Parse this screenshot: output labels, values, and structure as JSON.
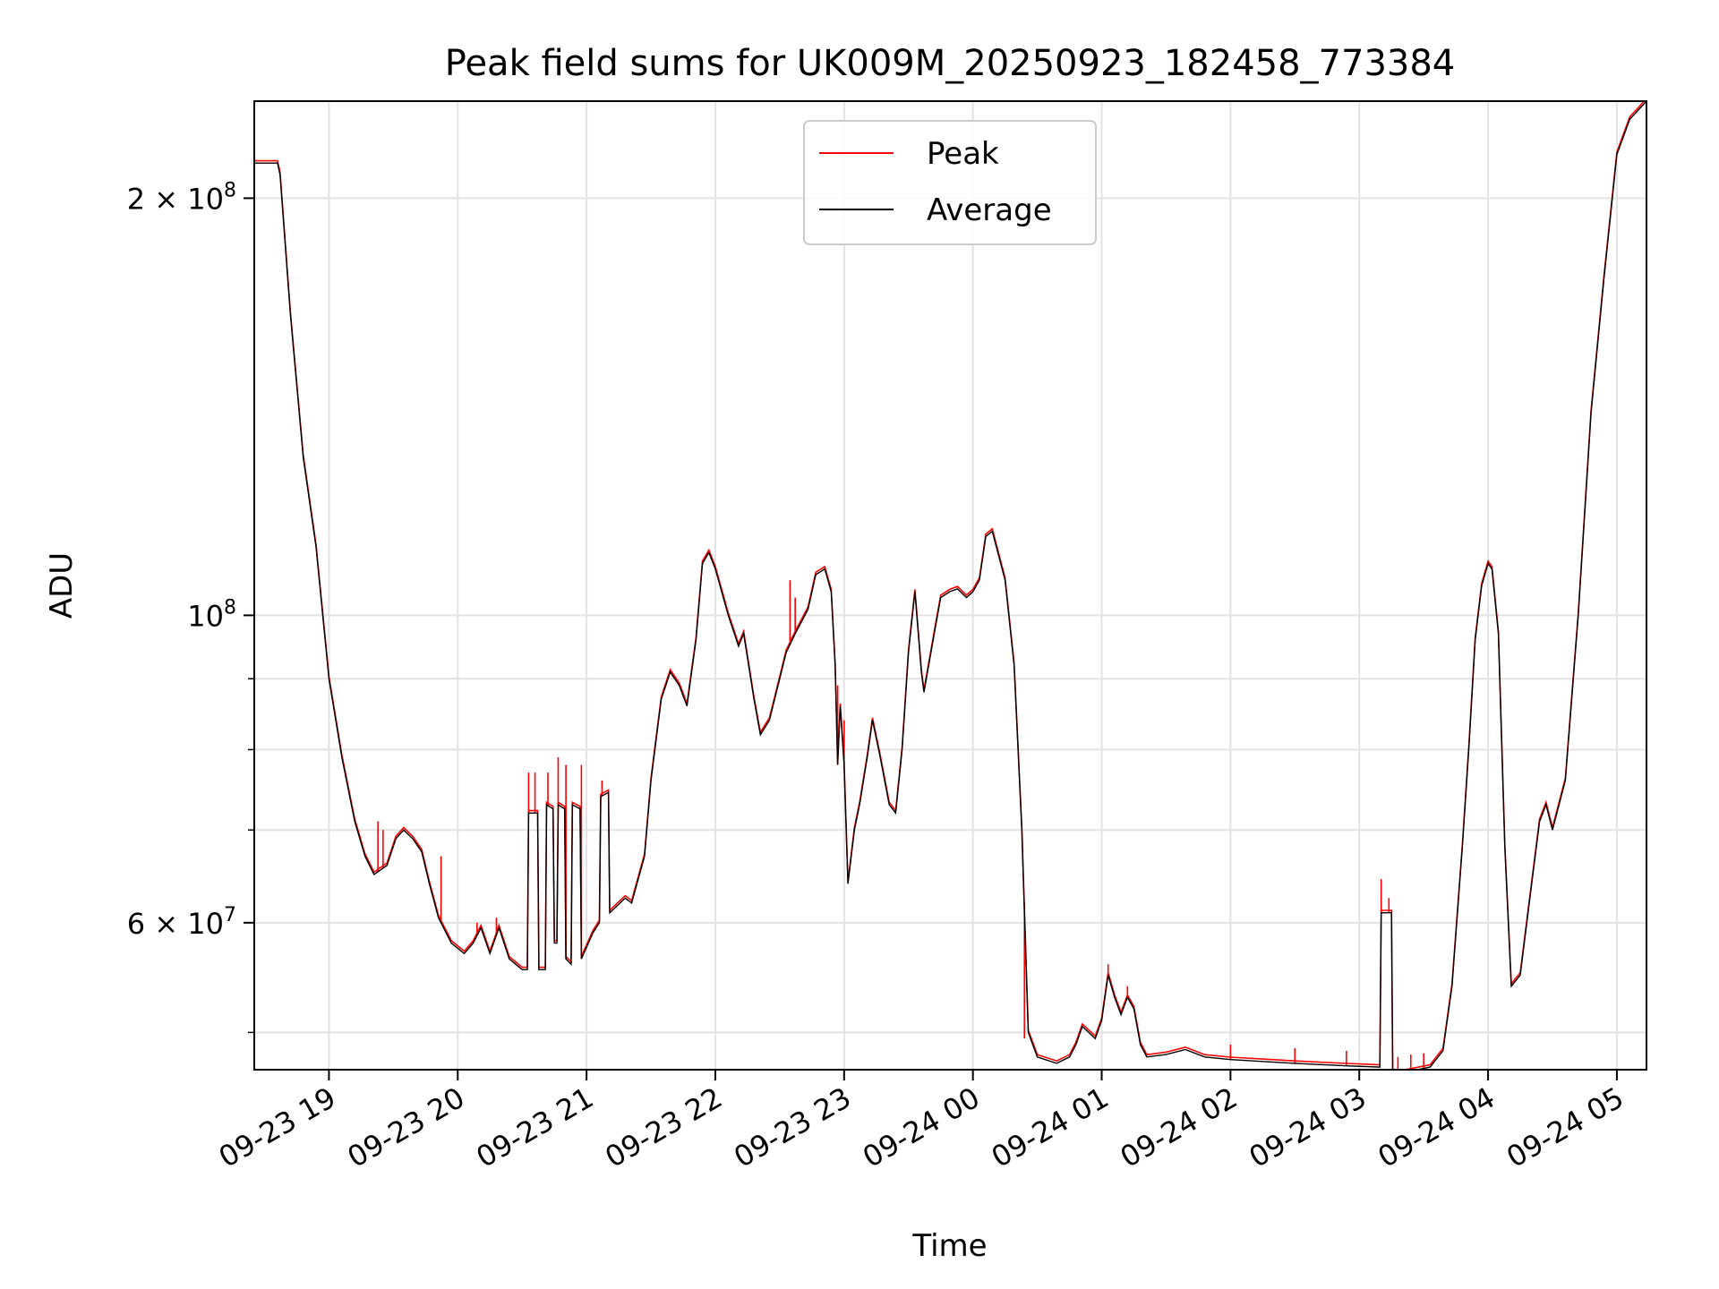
{
  "chart_data": {
    "type": "line",
    "title": "Peak field sums for UK009M_20250923_182458_773384",
    "xlabel": "Time",
    "ylabel": "ADU",
    "yscale": "log",
    "ylim": [
      47000000,
      235000000
    ],
    "xlim_hours": [
      18.42,
      29.23
    ],
    "grid": true,
    "legend_position": "upper center",
    "x_ticks": [
      {
        "hour": 19,
        "label": "09-23 19"
      },
      {
        "hour": 20,
        "label": "09-23 20"
      },
      {
        "hour": 21,
        "label": "09-23 21"
      },
      {
        "hour": 22,
        "label": "09-23 22"
      },
      {
        "hour": 23,
        "label": "09-23 23"
      },
      {
        "hour": 24,
        "label": "09-24 00"
      },
      {
        "hour": 25,
        "label": "09-24 01"
      },
      {
        "hour": 26,
        "label": "09-24 02"
      },
      {
        "hour": 27,
        "label": "09-24 03"
      },
      {
        "hour": 28,
        "label": "09-24 04"
      },
      {
        "hour": 29,
        "label": "09-24 05"
      }
    ],
    "y_major_ticks": [
      {
        "value": 200000000,
        "mantissa": "2",
        "exponent": "8"
      },
      {
        "value": 100000000,
        "mantissa": "",
        "exponent": "8"
      },
      {
        "value": 60000000,
        "mantissa": "6",
        "exponent": "7"
      }
    ],
    "y_minor_gridlines": [
      50000000,
      70000000,
      80000000,
      90000000
    ],
    "series": [
      {
        "name": "Peak",
        "color": "#ff0000",
        "spikes": [
          [
            19.38,
            71000000
          ],
          [
            19.42,
            70000000
          ],
          [
            19.87,
            67000000
          ],
          [
            20.15,
            60000000
          ],
          [
            20.3,
            60500000
          ],
          [
            20.55,
            77000000
          ],
          [
            20.6,
            77000000
          ],
          [
            20.7,
            77000000
          ],
          [
            20.78,
            79000000
          ],
          [
            20.84,
            78000000
          ],
          [
            20.96,
            78000000
          ],
          [
            21.12,
            76000000
          ],
          [
            22.58,
            106000000
          ],
          [
            22.62,
            103000000
          ],
          [
            22.95,
            89000000
          ],
          [
            23.0,
            84000000
          ],
          [
            24.4,
            49500000
          ],
          [
            25.05,
            56000000
          ],
          [
            25.2,
            54000000
          ],
          [
            26.0,
            49000000
          ],
          [
            26.5,
            48700000
          ],
          [
            26.9,
            48500000
          ],
          [
            27.17,
            64500000
          ],
          [
            27.23,
            62500000
          ],
          [
            27.3,
            48000000
          ],
          [
            27.4,
            48200000
          ],
          [
            27.5,
            48300000
          ]
        ]
      },
      {
        "name": "Average",
        "color": "#000000",
        "points": [
          [
            18.42,
            212000000
          ],
          [
            18.6,
            212000000
          ],
          [
            18.62,
            208000000
          ],
          [
            18.7,
            165000000
          ],
          [
            18.8,
            130000000
          ],
          [
            18.9,
            112000000
          ],
          [
            19.0,
            90000000
          ],
          [
            19.1,
            79000000
          ],
          [
            19.2,
            71000000
          ],
          [
            19.28,
            67000000
          ],
          [
            19.35,
            65000000
          ],
          [
            19.45,
            66000000
          ],
          [
            19.52,
            69000000
          ],
          [
            19.58,
            70000000
          ],
          [
            19.65,
            69000000
          ],
          [
            19.72,
            67500000
          ],
          [
            19.78,
            64000000
          ],
          [
            19.85,
            60500000
          ],
          [
            19.95,
            58000000
          ],
          [
            20.05,
            57000000
          ],
          [
            20.12,
            58000000
          ],
          [
            20.18,
            59500000
          ],
          [
            20.25,
            57000000
          ],
          [
            20.32,
            59500000
          ],
          [
            20.4,
            56500000
          ],
          [
            20.5,
            55500000
          ],
          [
            20.54,
            55500000
          ],
          [
            20.55,
            72000000
          ],
          [
            20.62,
            72000000
          ],
          [
            20.63,
            55500000
          ],
          [
            20.68,
            55500000
          ],
          [
            20.69,
            73000000
          ],
          [
            20.74,
            72500000
          ],
          [
            20.75,
            58000000
          ],
          [
            20.77,
            58000000
          ],
          [
            20.78,
            73000000
          ],
          [
            20.83,
            72500000
          ],
          [
            20.84,
            56500000
          ],
          [
            20.88,
            56000000
          ],
          [
            20.89,
            73000000
          ],
          [
            20.95,
            72500000
          ],
          [
            20.96,
            56500000
          ],
          [
            21.05,
            59000000
          ],
          [
            21.1,
            60000000
          ],
          [
            21.11,
            74000000
          ],
          [
            21.17,
            74500000
          ],
          [
            21.18,
            61000000
          ],
          [
            21.3,
            62500000
          ],
          [
            21.35,
            62000000
          ],
          [
            21.45,
            67000000
          ],
          [
            21.5,
            76000000
          ],
          [
            21.58,
            87000000
          ],
          [
            21.65,
            91000000
          ],
          [
            21.72,
            89000000
          ],
          [
            21.78,
            86000000
          ],
          [
            21.85,
            96000000
          ],
          [
            21.9,
            109000000
          ],
          [
            21.95,
            111000000
          ],
          [
            22.0,
            108000000
          ],
          [
            22.1,
            100000000
          ],
          [
            22.18,
            95000000
          ],
          [
            22.22,
            97000000
          ],
          [
            22.3,
            87000000
          ],
          [
            22.35,
            82000000
          ],
          [
            22.42,
            84000000
          ],
          [
            22.5,
            90000000
          ],
          [
            22.55,
            94000000
          ],
          [
            22.62,
            97000000
          ],
          [
            22.72,
            101000000
          ],
          [
            22.78,
            107000000
          ],
          [
            22.85,
            108000000
          ],
          [
            22.9,
            104000000
          ],
          [
            22.93,
            92000000
          ],
          [
            22.95,
            78000000
          ],
          [
            22.97,
            86000000
          ],
          [
            23.0,
            78000000
          ],
          [
            23.03,
            64000000
          ],
          [
            23.08,
            70000000
          ],
          [
            23.12,
            73000000
          ],
          [
            23.18,
            79000000
          ],
          [
            23.22,
            84000000
          ],
          [
            23.28,
            79000000
          ],
          [
            23.35,
            73000000
          ],
          [
            23.4,
            72000000
          ],
          [
            23.45,
            80000000
          ],
          [
            23.5,
            94000000
          ],
          [
            23.55,
            104000000
          ],
          [
            23.6,
            91000000
          ],
          [
            23.62,
            88000000
          ],
          [
            23.7,
            97000000
          ],
          [
            23.75,
            103000000
          ],
          [
            23.82,
            104000000
          ],
          [
            23.88,
            104500000
          ],
          [
            23.95,
            103000000
          ],
          [
            24.0,
            104000000
          ],
          [
            24.05,
            106000000
          ],
          [
            24.1,
            114000000
          ],
          [
            24.15,
            115000000
          ],
          [
            24.25,
            106000000
          ],
          [
            24.32,
            92000000
          ],
          [
            24.38,
            70000000
          ],
          [
            24.43,
            50000000
          ],
          [
            24.5,
            48000000
          ],
          [
            24.65,
            47500000
          ],
          [
            24.75,
            48000000
          ],
          [
            24.8,
            49000000
          ],
          [
            24.85,
            50500000
          ],
          [
            24.9,
            50000000
          ],
          [
            24.95,
            49500000
          ],
          [
            25.0,
            51000000
          ],
          [
            25.05,
            55000000
          ],
          [
            25.1,
            53000000
          ],
          [
            25.15,
            51500000
          ],
          [
            25.2,
            53000000
          ],
          [
            25.25,
            52000000
          ],
          [
            25.3,
            49000000
          ],
          [
            25.35,
            48000000
          ],
          [
            25.5,
            48200000
          ],
          [
            25.65,
            48600000
          ],
          [
            25.8,
            48000000
          ],
          [
            26.0,
            47800000
          ],
          [
            26.5,
            47500000
          ],
          [
            26.9,
            47300000
          ],
          [
            27.16,
            47200000
          ],
          [
            27.17,
            61000000
          ],
          [
            27.25,
            61000000
          ],
          [
            27.26,
            46500000
          ],
          [
            27.35,
            46800000
          ],
          [
            27.55,
            47200000
          ],
          [
            27.65,
            48500000
          ],
          [
            27.72,
            54000000
          ],
          [
            27.8,
            68000000
          ],
          [
            27.85,
            80000000
          ],
          [
            27.9,
            96000000
          ],
          [
            27.95,
            105000000
          ],
          [
            28.0,
            109000000
          ],
          [
            28.03,
            108000000
          ],
          [
            28.08,
            97000000
          ],
          [
            28.13,
            68000000
          ],
          [
            28.18,
            54000000
          ],
          [
            28.25,
            55000000
          ],
          [
            28.32,
            62000000
          ],
          [
            28.4,
            71000000
          ],
          [
            28.45,
            73000000
          ],
          [
            28.5,
            70000000
          ],
          [
            28.6,
            76000000
          ],
          [
            28.7,
            100000000
          ],
          [
            28.8,
            140000000
          ],
          [
            28.9,
            175000000
          ],
          [
            29.0,
            215000000
          ],
          [
            29.1,
            228000000
          ],
          [
            29.23,
            235000000
          ]
        ]
      }
    ],
    "legend": [
      {
        "label": "Peak",
        "color": "#ff0000"
      },
      {
        "label": "Average",
        "color": "#000000"
      }
    ]
  }
}
